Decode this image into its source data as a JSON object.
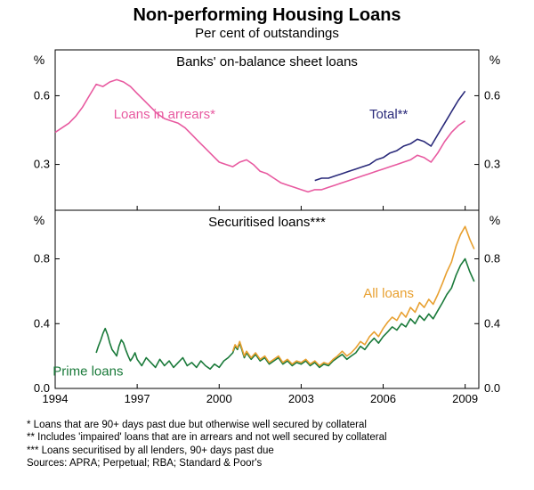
{
  "title": "Non-performing Housing Loans",
  "subtitle": "Per cent of outstandings",
  "panel1": {
    "title": "Banks' on-balance sheet loans",
    "ylabel_left": "%",
    "ylabel_right": "%",
    "ylim": [
      0.1,
      0.8
    ],
    "yticks": [
      0.3,
      0.6
    ],
    "series": [
      {
        "name": "Loans in arrears*",
        "label": "Loans in arrears*",
        "color": "#e85aa0",
        "label_x": 1998.0,
        "label_y": 0.5,
        "data": [
          [
            1994.0,
            0.44
          ],
          [
            1994.25,
            0.46
          ],
          [
            1994.5,
            0.48
          ],
          [
            1994.75,
            0.51
          ],
          [
            1995.0,
            0.55
          ],
          [
            1995.25,
            0.6
          ],
          [
            1995.5,
            0.65
          ],
          [
            1995.75,
            0.64
          ],
          [
            1996.0,
            0.66
          ],
          [
            1996.25,
            0.67
          ],
          [
            1996.5,
            0.66
          ],
          [
            1996.75,
            0.64
          ],
          [
            1997.0,
            0.61
          ],
          [
            1997.25,
            0.58
          ],
          [
            1997.5,
            0.55
          ],
          [
            1997.75,
            0.52
          ],
          [
            1998.0,
            0.5
          ],
          [
            1998.25,
            0.49
          ],
          [
            1998.5,
            0.48
          ],
          [
            1998.75,
            0.46
          ],
          [
            1999.0,
            0.43
          ],
          [
            1999.25,
            0.4
          ],
          [
            1999.5,
            0.37
          ],
          [
            1999.75,
            0.34
          ],
          [
            2000.0,
            0.31
          ],
          [
            2000.25,
            0.3
          ],
          [
            2000.5,
            0.29
          ],
          [
            2000.75,
            0.31
          ],
          [
            2001.0,
            0.32
          ],
          [
            2001.25,
            0.3
          ],
          [
            2001.5,
            0.27
          ],
          [
            2001.75,
            0.26
          ],
          [
            2002.0,
            0.24
          ],
          [
            2002.25,
            0.22
          ],
          [
            2002.5,
            0.21
          ],
          [
            2002.75,
            0.2
          ],
          [
            2003.0,
            0.19
          ],
          [
            2003.25,
            0.18
          ],
          [
            2003.5,
            0.19
          ],
          [
            2003.75,
            0.19
          ],
          [
            2004.0,
            0.2
          ],
          [
            2004.25,
            0.21
          ],
          [
            2004.5,
            0.22
          ],
          [
            2004.75,
            0.23
          ],
          [
            2005.0,
            0.24
          ],
          [
            2005.25,
            0.25
          ],
          [
            2005.5,
            0.26
          ],
          [
            2005.75,
            0.27
          ],
          [
            2006.0,
            0.28
          ],
          [
            2006.25,
            0.29
          ],
          [
            2006.5,
            0.3
          ],
          [
            2006.75,
            0.31
          ],
          [
            2007.0,
            0.32
          ],
          [
            2007.25,
            0.34
          ],
          [
            2007.5,
            0.33
          ],
          [
            2007.75,
            0.31
          ],
          [
            2008.0,
            0.35
          ],
          [
            2008.25,
            0.4
          ],
          [
            2008.5,
            0.44
          ],
          [
            2008.75,
            0.47
          ],
          [
            2009.0,
            0.49
          ]
        ]
      },
      {
        "name": "Total**",
        "label": "Total**",
        "color": "#2a2a7a",
        "label_x": 2006.2,
        "label_y": 0.5,
        "data": [
          [
            2003.5,
            0.23
          ],
          [
            2003.75,
            0.24
          ],
          [
            2004.0,
            0.24
          ],
          [
            2004.25,
            0.25
          ],
          [
            2004.5,
            0.26
          ],
          [
            2004.75,
            0.27
          ],
          [
            2005.0,
            0.28
          ],
          [
            2005.25,
            0.29
          ],
          [
            2005.5,
            0.3
          ],
          [
            2005.75,
            0.32
          ],
          [
            2006.0,
            0.33
          ],
          [
            2006.25,
            0.35
          ],
          [
            2006.5,
            0.36
          ],
          [
            2006.75,
            0.38
          ],
          [
            2007.0,
            0.39
          ],
          [
            2007.25,
            0.41
          ],
          [
            2007.5,
            0.4
          ],
          [
            2007.75,
            0.38
          ],
          [
            2008.0,
            0.43
          ],
          [
            2008.25,
            0.48
          ],
          [
            2008.5,
            0.53
          ],
          [
            2008.75,
            0.58
          ],
          [
            2009.0,
            0.62
          ]
        ]
      }
    ]
  },
  "panel2": {
    "title": "Securitised loans***",
    "ylabel_left": "%",
    "ylabel_right": "%",
    "ylim": [
      0.0,
      1.1
    ],
    "yticks": [
      0.0,
      0.4,
      0.8
    ],
    "series": [
      {
        "name": "Prime loans",
        "label": "Prime loans",
        "color": "#1a7a3a",
        "label_x": 1995.2,
        "label_y": 0.08,
        "data": [
          [
            1995.5,
            0.22
          ],
          [
            1995.58,
            0.26
          ],
          [
            1995.67,
            0.3
          ],
          [
            1995.75,
            0.34
          ],
          [
            1995.83,
            0.37
          ],
          [
            1995.92,
            0.33
          ],
          [
            1996.0,
            0.28
          ],
          [
            1996.08,
            0.24
          ],
          [
            1996.17,
            0.22
          ],
          [
            1996.25,
            0.2
          ],
          [
            1996.33,
            0.26
          ],
          [
            1996.42,
            0.3
          ],
          [
            1996.5,
            0.28
          ],
          [
            1996.58,
            0.24
          ],
          [
            1996.67,
            0.2
          ],
          [
            1996.75,
            0.17
          ],
          [
            1996.83,
            0.19
          ],
          [
            1996.92,
            0.22
          ],
          [
            1997.0,
            0.18
          ],
          [
            1997.17,
            0.14
          ],
          [
            1997.33,
            0.19
          ],
          [
            1997.5,
            0.16
          ],
          [
            1997.67,
            0.13
          ],
          [
            1997.83,
            0.18
          ],
          [
            1998.0,
            0.14
          ],
          [
            1998.17,
            0.17
          ],
          [
            1998.33,
            0.13
          ],
          [
            1998.5,
            0.16
          ],
          [
            1998.67,
            0.19
          ],
          [
            1998.83,
            0.14
          ],
          [
            1999.0,
            0.16
          ],
          [
            1999.17,
            0.13
          ],
          [
            1999.33,
            0.17
          ],
          [
            1999.5,
            0.14
          ],
          [
            1999.67,
            0.12
          ],
          [
            1999.83,
            0.15
          ],
          [
            2000.0,
            0.13
          ],
          [
            2000.17,
            0.17
          ],
          [
            2000.33,
            0.19
          ],
          [
            2000.5,
            0.22
          ],
          [
            2000.58,
            0.26
          ],
          [
            2000.67,
            0.24
          ],
          [
            2000.75,
            0.28
          ],
          [
            2000.83,
            0.24
          ],
          [
            2000.92,
            0.19
          ],
          [
            2001.0,
            0.22
          ],
          [
            2001.17,
            0.18
          ],
          [
            2001.33,
            0.21
          ],
          [
            2001.5,
            0.17
          ],
          [
            2001.67,
            0.19
          ],
          [
            2001.83,
            0.15
          ],
          [
            2002.0,
            0.17
          ],
          [
            2002.17,
            0.19
          ],
          [
            2002.33,
            0.15
          ],
          [
            2002.5,
            0.17
          ],
          [
            2002.67,
            0.14
          ],
          [
            2002.83,
            0.16
          ],
          [
            2003.0,
            0.15
          ],
          [
            2003.17,
            0.17
          ],
          [
            2003.33,
            0.14
          ],
          [
            2003.5,
            0.16
          ],
          [
            2003.67,
            0.13
          ],
          [
            2003.83,
            0.15
          ],
          [
            2004.0,
            0.14
          ],
          [
            2004.17,
            0.17
          ],
          [
            2004.33,
            0.19
          ],
          [
            2004.5,
            0.21
          ],
          [
            2004.67,
            0.18
          ],
          [
            2004.83,
            0.2
          ],
          [
            2005.0,
            0.22
          ],
          [
            2005.17,
            0.26
          ],
          [
            2005.33,
            0.24
          ],
          [
            2005.5,
            0.28
          ],
          [
            2005.67,
            0.31
          ],
          [
            2005.83,
            0.28
          ],
          [
            2006.0,
            0.32
          ],
          [
            2006.17,
            0.35
          ],
          [
            2006.33,
            0.38
          ],
          [
            2006.5,
            0.36
          ],
          [
            2006.67,
            0.4
          ],
          [
            2006.83,
            0.38
          ],
          [
            2007.0,
            0.43
          ],
          [
            2007.17,
            0.4
          ],
          [
            2007.33,
            0.45
          ],
          [
            2007.5,
            0.42
          ],
          [
            2007.67,
            0.46
          ],
          [
            2007.83,
            0.43
          ],
          [
            2008.0,
            0.48
          ],
          [
            2008.17,
            0.53
          ],
          [
            2008.33,
            0.58
          ],
          [
            2008.5,
            0.62
          ],
          [
            2008.67,
            0.7
          ],
          [
            2008.83,
            0.76
          ],
          [
            2009.0,
            0.8
          ],
          [
            2009.17,
            0.72
          ],
          [
            2009.33,
            0.66
          ]
        ]
      },
      {
        "name": "All loans",
        "label": "All loans",
        "color": "#e8a030",
        "label_x": 2006.2,
        "label_y": 0.56,
        "data": [
          [
            2000.5,
            0.23
          ],
          [
            2000.58,
            0.27
          ],
          [
            2000.67,
            0.25
          ],
          [
            2000.75,
            0.29
          ],
          [
            2000.83,
            0.25
          ],
          [
            2000.92,
            0.2
          ],
          [
            2001.0,
            0.23
          ],
          [
            2001.17,
            0.19
          ],
          [
            2001.33,
            0.22
          ],
          [
            2001.5,
            0.18
          ],
          [
            2001.67,
            0.2
          ],
          [
            2001.83,
            0.16
          ],
          [
            2002.0,
            0.18
          ],
          [
            2002.17,
            0.2
          ],
          [
            2002.33,
            0.16
          ],
          [
            2002.5,
            0.18
          ],
          [
            2002.67,
            0.15
          ],
          [
            2002.83,
            0.17
          ],
          [
            2003.0,
            0.16
          ],
          [
            2003.17,
            0.18
          ],
          [
            2003.33,
            0.15
          ],
          [
            2003.5,
            0.17
          ],
          [
            2003.67,
            0.14
          ],
          [
            2003.83,
            0.16
          ],
          [
            2004.0,
            0.15
          ],
          [
            2004.17,
            0.18
          ],
          [
            2004.33,
            0.2
          ],
          [
            2004.5,
            0.23
          ],
          [
            2004.67,
            0.2
          ],
          [
            2004.83,
            0.22
          ],
          [
            2005.0,
            0.25
          ],
          [
            2005.17,
            0.29
          ],
          [
            2005.33,
            0.27
          ],
          [
            2005.5,
            0.32
          ],
          [
            2005.67,
            0.35
          ],
          [
            2005.83,
            0.32
          ],
          [
            2006.0,
            0.37
          ],
          [
            2006.17,
            0.41
          ],
          [
            2006.33,
            0.44
          ],
          [
            2006.5,
            0.42
          ],
          [
            2006.67,
            0.47
          ],
          [
            2006.83,
            0.44
          ],
          [
            2007.0,
            0.5
          ],
          [
            2007.17,
            0.47
          ],
          [
            2007.33,
            0.53
          ],
          [
            2007.5,
            0.5
          ],
          [
            2007.67,
            0.55
          ],
          [
            2007.83,
            0.52
          ],
          [
            2008.0,
            0.58
          ],
          [
            2008.17,
            0.65
          ],
          [
            2008.33,
            0.72
          ],
          [
            2008.5,
            0.78
          ],
          [
            2008.67,
            0.88
          ],
          [
            2008.83,
            0.95
          ],
          [
            2009.0,
            1.0
          ],
          [
            2009.17,
            0.92
          ],
          [
            2009.33,
            0.86
          ]
        ]
      }
    ]
  },
  "xaxis": {
    "xlim": [
      1994,
      2009.5
    ],
    "ticks": [
      1994,
      1997,
      2000,
      2003,
      2006,
      2009
    ]
  },
  "footnotes": [
    "*    Loans that are 90+ days past due but otherwise well secured by collateral",
    "**   Includes 'impaired' loans that are in arrears and not well secured by collateral",
    "*** Loans securitised by all lenders, 90+ days past due"
  ],
  "sources": "Sources: APRA; Perpetual; RBA; Standard & Poor's",
  "style": {
    "grid_color": "#000000",
    "background": "#ffffff",
    "line_width": 1.6,
    "title_fontsize": 20,
    "subtitle_fontsize": 15,
    "panel_title_fontsize": 15,
    "axis_fontsize": 14,
    "tick_fontsize": 13,
    "footnote_fontsize": 11.5
  }
}
